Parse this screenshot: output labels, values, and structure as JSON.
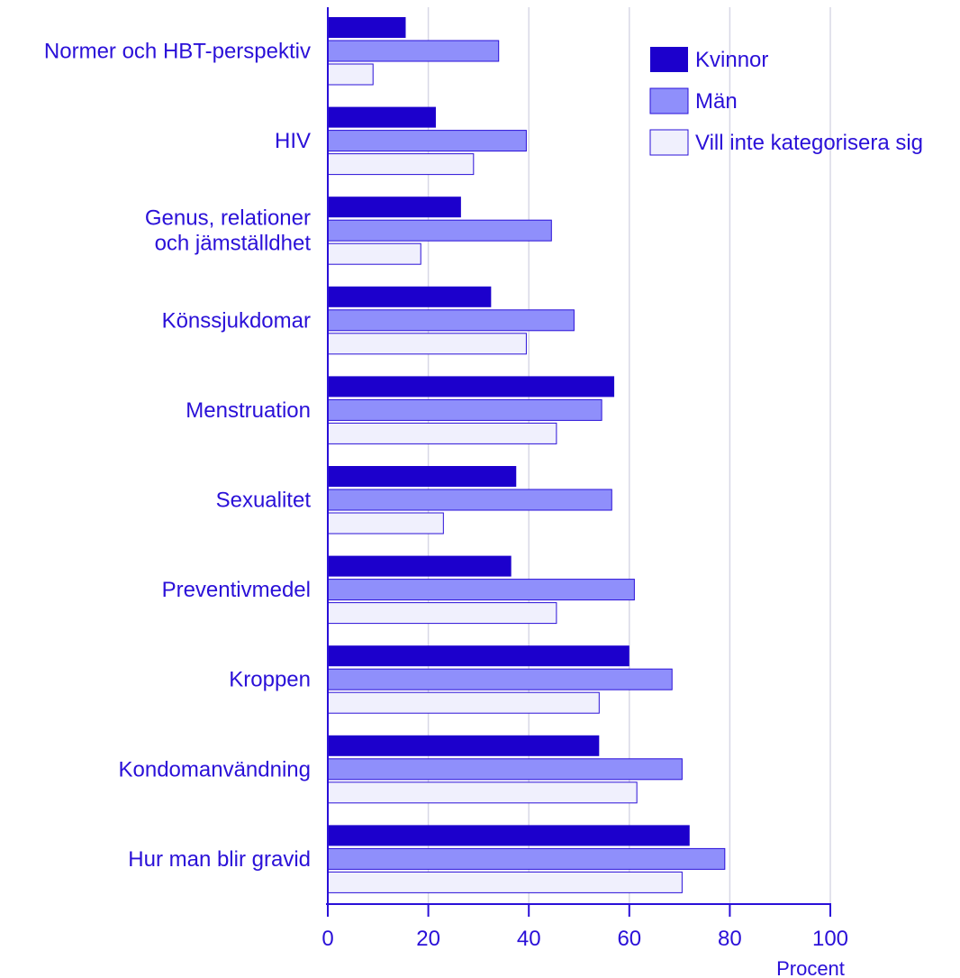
{
  "colors": {
    "kvinnor_fill": "#1c00cc",
    "man_fill": "#8f8ffb",
    "vill_inte_fill": "#f0f0fd",
    "bar_stroke": "#2a10d8",
    "gridline": "#d8d8e6",
    "axis": "#2a10d8",
    "text": "#2a10d8"
  },
  "chart_data": {
    "type": "bar",
    "orientation": "horizontal",
    "categories": [
      [
        "Normer och HBT-perspektiv"
      ],
      [
        "HIV"
      ],
      [
        "Genus, relationer",
        "och jämställdhet"
      ],
      [
        "Könssjukdomar"
      ],
      [
        "Menstruation"
      ],
      [
        "Sexualitet"
      ],
      [
        "Preventivmedel"
      ],
      [
        "Kroppen"
      ],
      [
        "Kondomanvändning"
      ],
      [
        "Hur man blir gravid"
      ]
    ],
    "series": [
      {
        "name": "Kvinnor",
        "values": [
          15.5,
          21.5,
          26.5,
          32.5,
          57,
          37.5,
          36.5,
          60,
          54,
          72
        ]
      },
      {
        "name": "Män",
        "values": [
          34,
          39.5,
          44.5,
          49,
          54.5,
          56.5,
          61,
          68.5,
          70.5,
          79
        ]
      },
      {
        "name": "Vill inte kategorisera sig",
        "values": [
          9,
          29,
          18.5,
          39.5,
          45.5,
          23,
          45.5,
          54,
          61.5,
          70.5
        ]
      }
    ],
    "xlabel": "Procent",
    "xlim": [
      0,
      100
    ],
    "xticks": [
      "0",
      "20",
      "40",
      "60",
      "80",
      "100"
    ],
    "grid": true,
    "legend_position": "top-right"
  }
}
